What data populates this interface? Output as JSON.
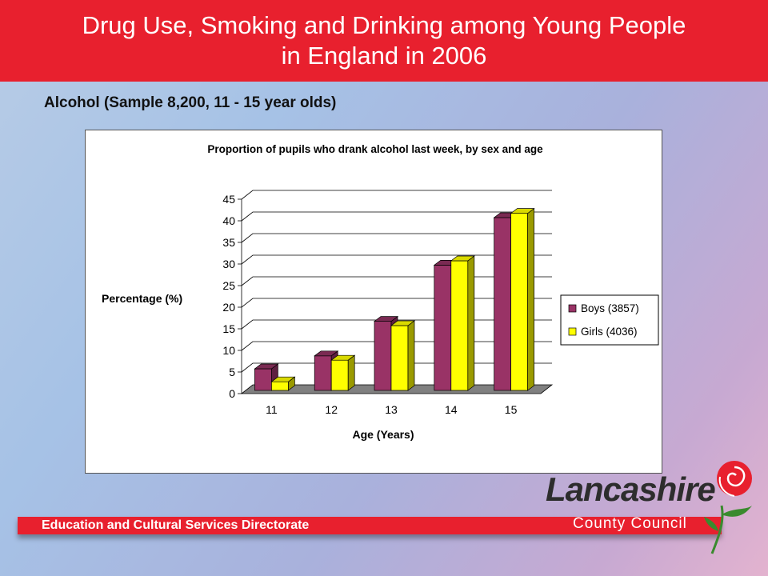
{
  "header": {
    "title_line1": "Drug Use, Smoking and Drinking among Young People",
    "title_line2": "in England in 2006"
  },
  "subtitle": "Alcohol (Sample 8,200, 11 - 15 year olds)",
  "footer": {
    "label": "Education and Cultural Services Directorate"
  },
  "logo": {
    "main": "Lancashire",
    "sub": "County Council",
    "icon": "red-rose-icon"
  },
  "colors": {
    "header": "#e8202e",
    "boys": "#993366",
    "girls": "#ffff00",
    "floor": "#808080"
  },
  "chart_data": {
    "type": "bar",
    "title": "Proportion of pupils who drank alcohol last week, by sex and age",
    "xlabel": "Age (Years)",
    "ylabel": "Percentage (%)",
    "categories": [
      "11",
      "12",
      "13",
      "14",
      "15"
    ],
    "yticks": [
      "0",
      "5",
      "10",
      "15",
      "20",
      "25",
      "30",
      "35",
      "40",
      "45"
    ],
    "ylim": [
      0,
      45
    ],
    "grid": true,
    "legend_position": "right",
    "series": [
      {
        "name": "Boys (3857)",
        "values": [
          5,
          8,
          16,
          29,
          40
        ]
      },
      {
        "name": "Girls (4036)",
        "values": [
          2,
          7,
          15,
          30,
          41
        ]
      }
    ]
  }
}
